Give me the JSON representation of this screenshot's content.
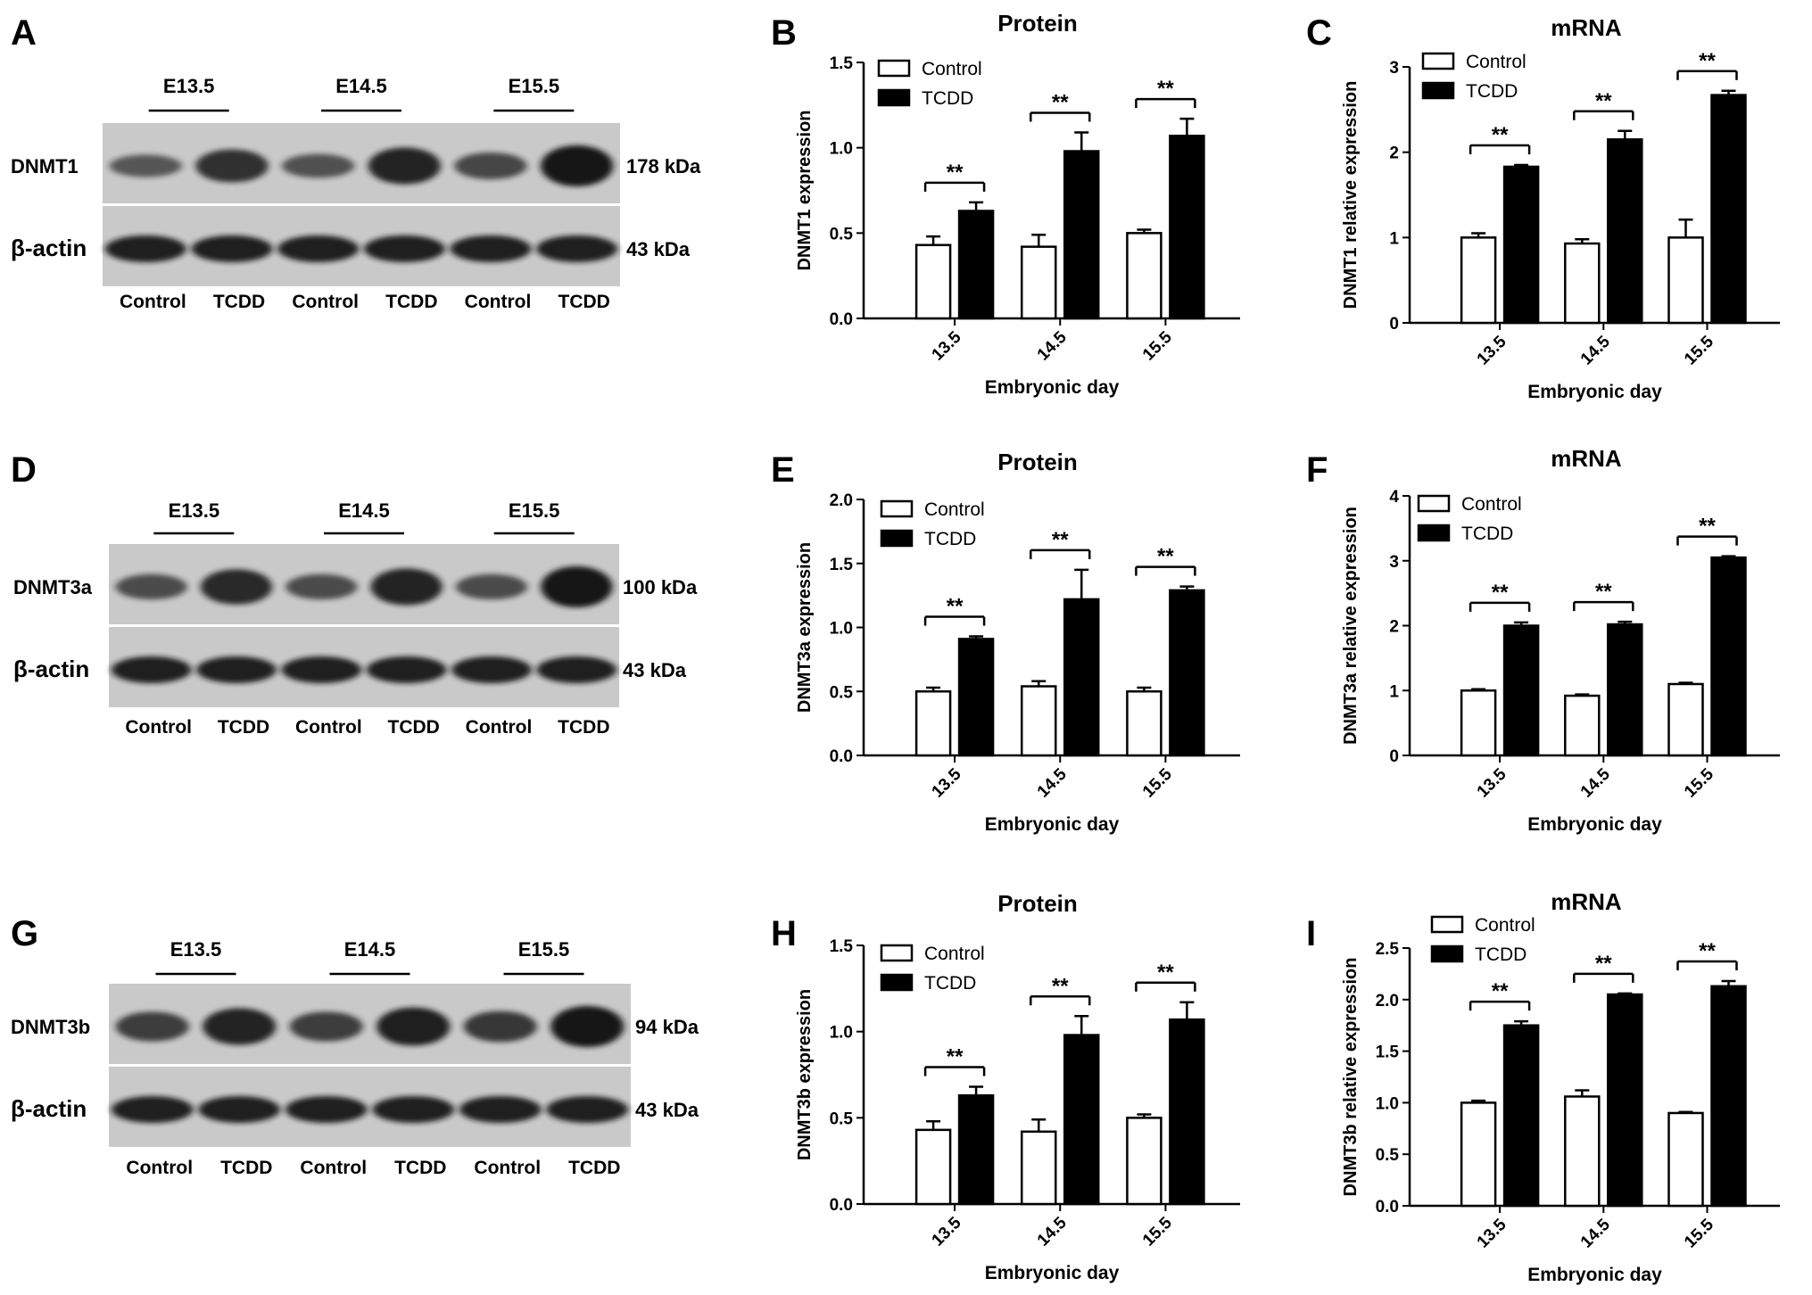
{
  "panel_letters": [
    "A",
    "B",
    "C",
    "D",
    "E",
    "F",
    "G",
    "H",
    "I"
  ],
  "blots": [
    {
      "group_labels": [
        "E13.5",
        "E14.5",
        "E15.5"
      ],
      "target": "DNMT1",
      "target_kda": "178 kDa",
      "loading": "β-actin",
      "loading_kda": "43 kDa",
      "lane_labels": [
        "Control",
        "TCDD",
        "Control",
        "TCDD",
        "Control",
        "TCDD"
      ],
      "target_band_intensity": [
        0.35,
        0.72,
        0.4,
        0.85,
        0.5,
        1.0
      ]
    },
    {
      "group_labels": [
        "E13.5",
        "E14.5",
        "E15.5"
      ],
      "target": "DNMT3a",
      "target_kda": "100 kDa",
      "loading": "β-actin",
      "loading_kda": "43 kDa",
      "lane_labels": [
        "Control",
        "TCDD",
        "Control",
        "TCDD",
        "Control",
        "TCDD"
      ],
      "target_band_intensity": [
        0.45,
        0.8,
        0.45,
        0.85,
        0.45,
        1.0
      ]
    },
    {
      "group_labels": [
        "E13.5",
        "E14.5",
        "E15.5"
      ],
      "target": "DNMT3b",
      "target_kda": "94 kDa",
      "loading": "β-actin",
      "loading_kda": "43 kDa",
      "lane_labels": [
        "Control",
        "TCDD",
        "Control",
        "TCDD",
        "Control",
        "TCDD"
      ],
      "target_band_intensity": [
        0.6,
        0.85,
        0.6,
        0.9,
        0.65,
        1.0
      ]
    }
  ],
  "colors": {
    "control": "#ffffff",
    "tcdd": "#000000",
    "blot_bg": "#c9c9c9",
    "band": "#141414"
  },
  "chart_data": [
    {
      "type": "bar",
      "title": "Protein",
      "xlabel": "Embryonic day",
      "ylabel": "DNMT1 expression",
      "categories": [
        "13.5",
        "14.5",
        "15.5"
      ],
      "ylim": [
        0,
        1.5
      ],
      "yticks": [
        0.0,
        0.5,
        1.0,
        1.5
      ],
      "ytick_labels": [
        "0.0",
        "0.5",
        "1.0",
        "1.5"
      ],
      "series": [
        {
          "name": "Control",
          "values": [
            0.43,
            0.42,
            0.5
          ],
          "errors": [
            0.05,
            0.07,
            0.02
          ]
        },
        {
          "name": "TCDD",
          "values": [
            0.63,
            0.98,
            1.07
          ],
          "errors": [
            0.05,
            0.11,
            0.1
          ]
        }
      ],
      "significance": [
        "**",
        "**",
        "**"
      ],
      "legend_position": "top-left"
    },
    {
      "type": "bar",
      "title": "mRNA",
      "xlabel": "Embryonic day",
      "ylabel": "DNMT1 relative expression",
      "categories": [
        "13.5",
        "14.5",
        "15.5"
      ],
      "ylim": [
        0,
        3
      ],
      "yticks": [
        0,
        1,
        2,
        3
      ],
      "ytick_labels": [
        "0",
        "1",
        "2",
        "3"
      ],
      "series": [
        {
          "name": "Control",
          "values": [
            1.0,
            0.93,
            1.0
          ],
          "errors": [
            0.05,
            0.05,
            0.21
          ]
        },
        {
          "name": "TCDD",
          "values": [
            1.83,
            2.15,
            2.67
          ],
          "errors": [
            0.02,
            0.1,
            0.05
          ]
        }
      ],
      "significance": [
        "**",
        "**",
        "**"
      ],
      "legend_position": "top-left"
    },
    {
      "type": "bar",
      "title": "Protein",
      "xlabel": "Embryonic day",
      "ylabel": "DNMT3a expression",
      "categories": [
        "13.5",
        "14.5",
        "15.5"
      ],
      "ylim": [
        0,
        2.0
      ],
      "yticks": [
        0.0,
        0.5,
        1.0,
        1.5,
        2.0
      ],
      "ytick_labels": [
        "0.0",
        "0.5",
        "1.0",
        "1.5",
        "2.0"
      ],
      "series": [
        {
          "name": "Control",
          "values": [
            0.5,
            0.54,
            0.5
          ],
          "errors": [
            0.03,
            0.04,
            0.03
          ]
        },
        {
          "name": "TCDD",
          "values": [
            0.91,
            1.22,
            1.29
          ],
          "errors": [
            0.02,
            0.23,
            0.03
          ]
        }
      ],
      "significance": [
        "**",
        "**",
        "**"
      ],
      "legend_position": "top-left"
    },
    {
      "type": "bar",
      "title": "mRNA",
      "xlabel": "Embryonic day",
      "ylabel": "DNMT3a relative expression",
      "categories": [
        "13.5",
        "14.5",
        "15.5"
      ],
      "ylim": [
        0,
        4
      ],
      "yticks": [
        0,
        1,
        2,
        3,
        4
      ],
      "ytick_labels": [
        "0",
        "1",
        "2",
        "3",
        "4"
      ],
      "series": [
        {
          "name": "Control",
          "values": [
            1.0,
            0.92,
            1.1
          ],
          "errors": [
            0.02,
            0.02,
            0.02
          ]
        },
        {
          "name": "TCDD",
          "values": [
            2.0,
            2.02,
            3.05
          ],
          "errors": [
            0.05,
            0.04,
            0.02
          ]
        }
      ],
      "significance": [
        "**",
        "**",
        "**"
      ],
      "legend_position": "top-left"
    },
    {
      "type": "bar",
      "title": "Protein",
      "xlabel": "Embryonic day",
      "ylabel": "DNMT3b expression",
      "categories": [
        "13.5",
        "14.5",
        "15.5"
      ],
      "ylim": [
        0,
        1.5
      ],
      "yticks": [
        0.0,
        0.5,
        1.0,
        1.5
      ],
      "ytick_labels": [
        "0.0",
        "0.5",
        "1.0",
        "1.5"
      ],
      "series": [
        {
          "name": "Control",
          "values": [
            0.43,
            0.42,
            0.5
          ],
          "errors": [
            0.05,
            0.07,
            0.02
          ]
        },
        {
          "name": "TCDD",
          "values": [
            0.63,
            0.98,
            1.07
          ],
          "errors": [
            0.05,
            0.11,
            0.1
          ]
        }
      ],
      "significance": [
        "**",
        "**",
        "**"
      ],
      "legend_position": "top-left"
    },
    {
      "type": "bar",
      "title": "mRNA",
      "xlabel": "Embryonic day",
      "ylabel": "DNMT3b relative expression",
      "categories": [
        "13.5",
        "14.5",
        "15.5"
      ],
      "ylim": [
        0,
        2.5
      ],
      "yticks": [
        0.0,
        0.5,
        1.0,
        1.5,
        2.0,
        2.5
      ],
      "ytick_labels": [
        "0.0",
        "0.5",
        "1.0",
        "1.5",
        "2.0",
        "2.5"
      ],
      "series": [
        {
          "name": "Control",
          "values": [
            1.0,
            1.06,
            0.9
          ],
          "errors": [
            0.02,
            0.06,
            0.01
          ]
        },
        {
          "name": "TCDD",
          "values": [
            1.75,
            2.05,
            2.13
          ],
          "errors": [
            0.04,
            0.01,
            0.05
          ]
        }
      ],
      "significance": [
        "**",
        "**",
        "**"
      ],
      "legend_position": "top-left"
    }
  ]
}
